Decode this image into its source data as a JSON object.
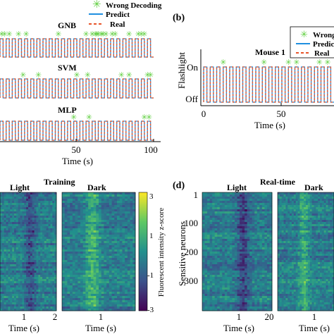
{
  "colors": {
    "predict": "#1f8fe0",
    "real": "#e8552a",
    "wrong": "#5fcf3f",
    "cmap": [
      "#440154",
      "#3b528b",
      "#21908d",
      "#5dc863",
      "#fde725"
    ]
  },
  "panel_b": {
    "label": "(b)",
    "title": "Mouse 1",
    "ylabel": "Flashlight",
    "xlabel": "Time (s)",
    "ytick_on": "On",
    "ytick_off": "Off",
    "xticks": [
      "0",
      "50"
    ],
    "legend": [
      "Wrong",
      "Predic",
      "Real"
    ]
  },
  "panel_d": {
    "label": "(d)",
    "title": "Real-time",
    "ylabel": "Sensitive neurons",
    "yticks": [
      "1",
      "100",
      "200",
      "300"
    ]
  },
  "panel_a": {
    "legend": [
      "Wrong Decoding",
      "Predict",
      "Real"
    ],
    "xlabel": "Time (s)",
    "xticks": [
      "50",
      "100"
    ]
  },
  "panel_c": {
    "title": "Training",
    "colorbar_label": "Fluorescent intensity z-score",
    "colorbar_ticks": [
      "3",
      "1",
      "-1",
      "-3"
    ]
  },
  "heatmap_labels": {
    "light": "Light",
    "dark": "Dark",
    "xlabel": "Time (s)",
    "tick_1": "1",
    "tick_2": "2",
    "tick_20": "20"
  },
  "chart_data": [
    {
      "type": "line",
      "title": "GNB",
      "xlabel": "Time (s)",
      "xlim": [
        0,
        100
      ],
      "ylim": [
        0,
        1
      ],
      "series": [
        {
          "name": "Real",
          "period_s": 4,
          "duty": 0.5
        },
        {
          "name": "Predict",
          "period_s": 4,
          "duty": 0.5
        }
      ],
      "wrong_decoding_s": [
        1,
        3,
        6,
        12,
        17,
        38,
        56,
        60,
        62,
        63,
        64,
        66,
        67,
        69,
        73,
        75,
        84,
        90,
        92,
        94
      ]
    },
    {
      "type": "line",
      "title": "SVM",
      "xlim": [
        0,
        100
      ],
      "ylim": [
        0,
        1
      ],
      "series": [
        {
          "name": "Real",
          "period_s": 4,
          "duty": 0.5
        },
        {
          "name": "Predict",
          "period_s": 4,
          "duty": 0.5
        }
      ],
      "wrong_decoding_s": [
        15,
        25,
        50,
        57,
        79,
        84,
        96,
        98
      ]
    },
    {
      "type": "line",
      "title": "MLP",
      "xlim": [
        0,
        100
      ],
      "ylim": [
        0,
        1
      ],
      "series": [
        {
          "name": "Real",
          "period_s": 4,
          "duty": 0.5
        },
        {
          "name": "Predict",
          "period_s": 4,
          "duty": 0.5
        }
      ],
      "wrong_decoding_s": [
        48,
        58,
        94,
        97
      ]
    },
    {
      "type": "line",
      "title": "Mouse 1",
      "xlabel": "Time (s)",
      "ylabel": "Flashlight",
      "xlim": [
        0,
        80
      ],
      "ylim": [
        0,
        1
      ],
      "series": [
        {
          "name": "Real",
          "period_s": 4,
          "duty": 0.5
        },
        {
          "name": "Predict",
          "period_s": 4,
          "duty": 0.5
        }
      ],
      "wrong_decoding_s": [
        12,
        37,
        52,
        57,
        71,
        76
      ]
    },
    {
      "type": "heatmap",
      "title": "Training",
      "panels": [
        "Light",
        "Dark"
      ],
      "xlabel": "Time (s)",
      "xlim": [
        0,
        2
      ],
      "value_label": "Fluorescent intensity z-score",
      "vmin": -3,
      "vmax": 3
    },
    {
      "type": "heatmap",
      "title": "Real-time",
      "panels": [
        "Light",
        "Dark"
      ],
      "xlabel": "Time (s)",
      "ylabel": "Sensitive neurons",
      "xlim": [
        0,
        2
      ],
      "neurons": [
        1,
        350
      ],
      "vmin": -3,
      "vmax": 3
    }
  ]
}
